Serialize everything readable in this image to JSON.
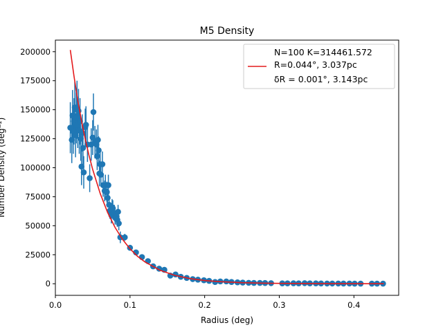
{
  "chart_data": {
    "type": "scatter",
    "title": "M5 Density",
    "xlabel": "Radius (deg)",
    "ylabel": "Number Density (deg⁻²)",
    "xlim": [
      0.0,
      0.46
    ],
    "ylim": [
      -10000,
      210000
    ],
    "xticks": [
      0.0,
      0.1,
      0.2,
      0.3,
      0.4
    ],
    "yticks": [
      0,
      25000,
      50000,
      75000,
      100000,
      125000,
      150000,
      175000,
      200000
    ],
    "xtick_labels": [
      "0.0",
      "0.1",
      "0.2",
      "0.3",
      "0.4"
    ],
    "ytick_labels": [
      "0",
      "25000",
      "50000",
      "75000",
      "100000",
      "125000",
      "150000",
      "175000",
      "200000"
    ],
    "grid": false,
    "legend": {
      "placement": "top-right",
      "lines": [
        "N=100   K=314461.572",
        "R=0.044°, 3.037pc",
        "δR = 0.001°, 3.143pc"
      ]
    },
    "colors": {
      "points": "#1f77b4",
      "fit": "#e41a1c"
    },
    "series": [
      {
        "kind": "errorbar-scatter",
        "points": [
          [
            0.02,
            134500,
            22000
          ],
          [
            0.022,
            124000,
            20000
          ],
          [
            0.023,
            145000,
            22000
          ],
          [
            0.024,
            131000,
            19000
          ],
          [
            0.025,
            140000,
            20000
          ],
          [
            0.026,
            152000,
            22000
          ],
          [
            0.027,
            128000,
            19000
          ],
          [
            0.028,
            143000,
            22000
          ],
          [
            0.029,
            150000,
            25000
          ],
          [
            0.03,
            137000,
            20000
          ],
          [
            0.031,
            149000,
            19000
          ],
          [
            0.032,
            132000,
            20000
          ],
          [
            0.033,
            140000,
            20000
          ],
          [
            0.034,
            125000,
            19000
          ],
          [
            0.035,
            101000,
            16000
          ],
          [
            0.036,
            130000,
            16000
          ],
          [
            0.037,
            117000,
            18000
          ],
          [
            0.038,
            96000,
            14000
          ],
          [
            0.04,
            135000,
            16000
          ],
          [
            0.041,
            137000,
            16000
          ],
          [
            0.043,
            120000,
            15000
          ],
          [
            0.046,
            91000,
            12000
          ],
          [
            0.048,
            120000,
            14000
          ],
          [
            0.05,
            126000,
            15000
          ],
          [
            0.051,
            148000,
            16000
          ],
          [
            0.053,
            122000,
            14000
          ],
          [
            0.055,
            120000,
            13000
          ],
          [
            0.056,
            110000,
            12000
          ],
          [
            0.057,
            124000,
            13000
          ],
          [
            0.058,
            115000,
            12000
          ],
          [
            0.059,
            95000,
            11000
          ],
          [
            0.06,
            103000,
            11000
          ],
          [
            0.061,
            94000,
            10000
          ],
          [
            0.063,
            103000,
            11000
          ],
          [
            0.064,
            85000,
            10000
          ],
          [
            0.066,
            80000,
            9000
          ],
          [
            0.067,
            85000,
            9000
          ],
          [
            0.069,
            79000,
            9000
          ],
          [
            0.07,
            74000,
            8000
          ],
          [
            0.071,
            85000,
            9000
          ],
          [
            0.072,
            68000,
            8000
          ],
          [
            0.073,
            63000,
            7000
          ],
          [
            0.075,
            59000,
            7000
          ],
          [
            0.076,
            66000,
            7000
          ],
          [
            0.077,
            65000,
            7000
          ],
          [
            0.079,
            61000,
            7000
          ],
          [
            0.08,
            57000,
            6000
          ],
          [
            0.082,
            58000,
            6000
          ],
          [
            0.083,
            55000,
            6000
          ],
          [
            0.084,
            62000,
            6000
          ],
          [
            0.085,
            52000,
            6000
          ],
          [
            0.087,
            40000,
            5000
          ],
          [
            0.093,
            40000,
            3000
          ],
          [
            0.1,
            31000,
            2500
          ],
          [
            0.108,
            27000,
            2000
          ],
          [
            0.116,
            23000,
            1800
          ],
          [
            0.124,
            19500,
            1500
          ],
          [
            0.131,
            15000,
            1200
          ],
          [
            0.139,
            13000,
            1000
          ],
          [
            0.146,
            12000,
            1000
          ],
          [
            0.154,
            7000,
            800
          ],
          [
            0.161,
            8000,
            700
          ],
          [
            0.168,
            6000,
            600
          ],
          [
            0.176,
            5000,
            500
          ],
          [
            0.184,
            4000,
            500
          ],
          [
            0.191,
            3500,
            400
          ],
          [
            0.199,
            3000,
            400
          ],
          [
            0.206,
            2500,
            400
          ],
          [
            0.214,
            1500,
            300
          ],
          [
            0.221,
            2000,
            300
          ],
          [
            0.229,
            2000,
            300
          ],
          [
            0.236,
            1500,
            300
          ],
          [
            0.244,
            1200,
            200
          ],
          [
            0.251,
            1000,
            200
          ],
          [
            0.259,
            800,
            200
          ],
          [
            0.266,
            700,
            200
          ],
          [
            0.274,
            700,
            200
          ],
          [
            0.281,
            600,
            200
          ],
          [
            0.289,
            500,
            200
          ],
          [
            0.304,
            300,
            150
          ],
          [
            0.311,
            300,
            150
          ],
          [
            0.319,
            400,
            150
          ],
          [
            0.326,
            300,
            150
          ],
          [
            0.334,
            500,
            150
          ],
          [
            0.341,
            300,
            150
          ],
          [
            0.349,
            300,
            150
          ],
          [
            0.356,
            250,
            150
          ],
          [
            0.364,
            200,
            150
          ],
          [
            0.371,
            200,
            150
          ],
          [
            0.379,
            200,
            150
          ],
          [
            0.386,
            150,
            150
          ],
          [
            0.394,
            200,
            150
          ],
          [
            0.401,
            100,
            150
          ],
          [
            0.409,
            100,
            150
          ],
          [
            0.424,
            100,
            150
          ],
          [
            0.431,
            100,
            150
          ],
          [
            0.439,
            100,
            150
          ]
        ]
      },
      {
        "kind": "fit-line",
        "x": [
          0.02,
          0.025,
          0.03,
          0.035,
          0.04,
          0.045,
          0.05,
          0.06,
          0.07,
          0.08,
          0.09,
          0.1,
          0.11,
          0.12,
          0.14,
          0.16,
          0.18,
          0.2,
          0.22,
          0.25,
          0.28,
          0.3,
          0.35,
          0.4,
          0.44
        ],
        "y": [
          201500,
          178700,
          158000,
          140500,
          124600,
          110800,
          98500,
          77900,
          61400,
          48500,
          38200,
          30100,
          23700,
          18800,
          11700,
          7200,
          4500,
          2800,
          1800,
          900,
          450,
          300,
          100,
          30,
          10
        ]
      }
    ]
  }
}
